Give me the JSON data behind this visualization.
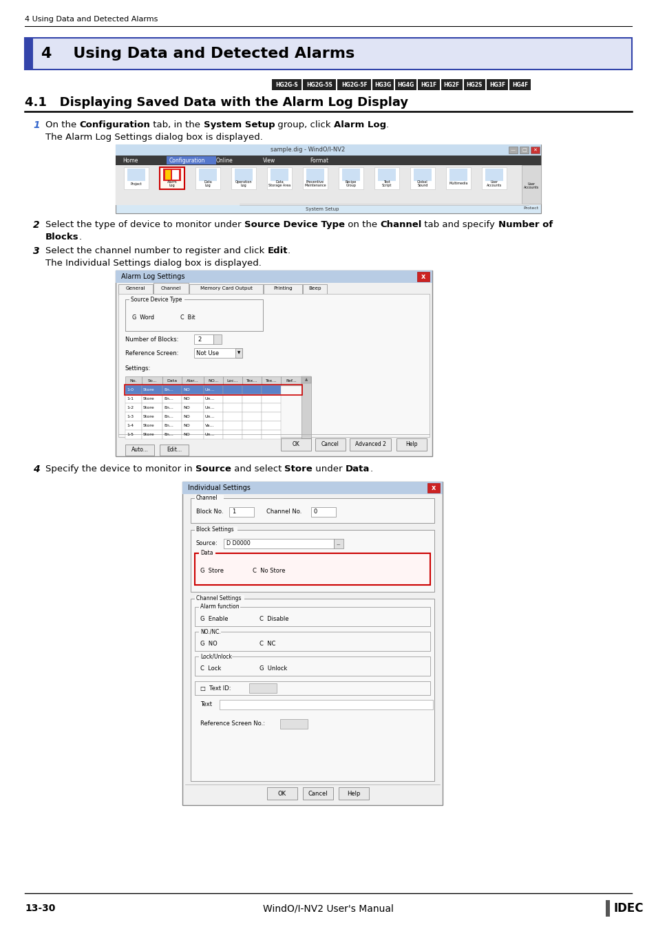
{
  "page_header": "4 Using Data and Detected Alarms",
  "chapter_title": "4    Using Data and Detected Alarms",
  "chapter_bg": "#e0e4f5",
  "chapter_border": "#3344aa",
  "section_title": "4.1   Displaying Saved Data with the Alarm Log Display",
  "badges": [
    "HG2G-S",
    "HG2G-5S",
    "HG2G-5F",
    "HG3G",
    "HG4G",
    "HG1F",
    "HG2F",
    "HG2S",
    "HG3F",
    "HG4F"
  ],
  "badge_bg": "#222222",
  "badge_text": "#ffffff",
  "step1_line1": [
    {
      "text": "On the ",
      "bold": false
    },
    {
      "text": "Configuration",
      "bold": true
    },
    {
      "text": " tab, in the ",
      "bold": false
    },
    {
      "text": "System Setup",
      "bold": true
    },
    {
      "text": " group, click ",
      "bold": false
    },
    {
      "text": "Alarm Log",
      "bold": true
    },
    {
      "text": ".",
      "bold": false
    }
  ],
  "step1_sub": "The Alarm Log Settings dialog box is displayed.",
  "step2_line1": [
    {
      "text": "Select the type of device to monitor under ",
      "bold": false
    },
    {
      "text": "Source Device Type",
      "bold": true
    },
    {
      "text": " on the ",
      "bold": false
    },
    {
      "text": "Channel",
      "bold": true
    },
    {
      "text": " tab and specify ",
      "bold": false
    },
    {
      "text": "Number of",
      "bold": true
    }
  ],
  "step2_line2": [
    {
      "text": "Blocks",
      "bold": true
    },
    {
      "text": ".",
      "bold": false
    }
  ],
  "step3_line1": [
    {
      "text": "Select the channel number to register and click ",
      "bold": false
    },
    {
      "text": "Edit",
      "bold": true
    },
    {
      "text": ".",
      "bold": false
    }
  ],
  "step3_sub": "The Individual Settings dialog box is displayed.",
  "step4_line1": [
    {
      "text": "Specify the device to monitor in ",
      "bold": false
    },
    {
      "text": "Source",
      "bold": true
    },
    {
      "text": " and select ",
      "bold": false
    },
    {
      "text": "Store",
      "bold": true
    },
    {
      "text": " under ",
      "bold": false
    },
    {
      "text": "Data",
      "bold": true
    },
    {
      "text": ".",
      "bold": false
    }
  ],
  "footer_left": "13-30",
  "footer_center": "WindO/I-NV2 User's Manual",
  "footer_right": "IDEC",
  "bg_color": "#ffffff"
}
